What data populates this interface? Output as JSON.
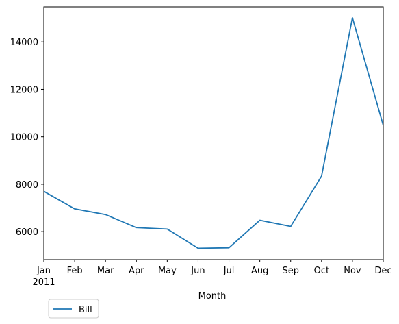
{
  "chart_data": {
    "type": "line",
    "title": "",
    "xlabel": "Month",
    "ylabel": "",
    "categories": [
      "Jan",
      "Feb",
      "Mar",
      "Apr",
      "May",
      "Jun",
      "Jul",
      "Aug",
      "Sep",
      "Oct",
      "Nov",
      "Dec"
    ],
    "year_label": "2011",
    "series": [
      {
        "name": "Bill",
        "color": "#1f77b4",
        "values": [
          7700,
          6960,
          6720,
          6170,
          6110,
          5300,
          5320,
          6480,
          6220,
          8340,
          15020,
          10480
        ]
      }
    ],
    "ylim": [
      4820,
      15480
    ],
    "yticks": [
      6000,
      8000,
      10000,
      12000,
      14000
    ],
    "ytick_labels": [
      "6000",
      "8000",
      "10000",
      "12000",
      "14000"
    ],
    "grid": false,
    "legend_position": "below-left"
  }
}
